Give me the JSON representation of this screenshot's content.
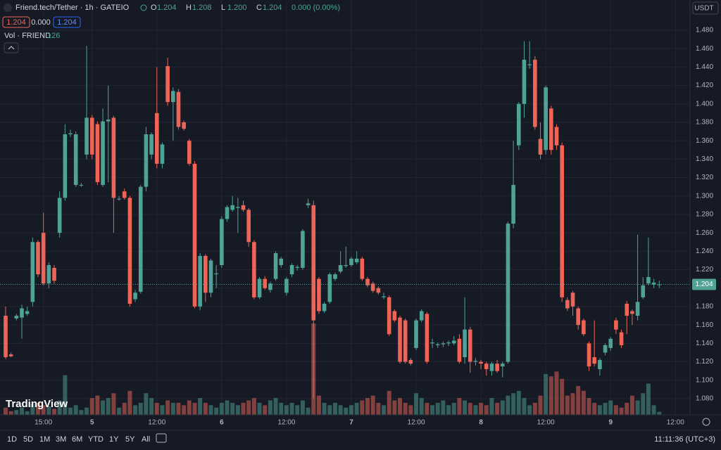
{
  "header": {
    "symbol": "Friend.tech/Tether · 1h · GATEIO",
    "ohlc": [
      {
        "label": "O",
        "value": "1.204"
      },
      {
        "label": "H",
        "value": "1.208"
      },
      {
        "label": "L",
        "value": "1.200"
      },
      {
        "label": "C",
        "value": "1.204"
      }
    ],
    "change": "0.000 (0.00%)",
    "bid": "1.204",
    "spread": "0.000",
    "ask": "1.204",
    "vol_label": "Vol · FRIEND",
    "currency": "USDT"
  },
  "toolbar": {
    "ranges": [
      "1D",
      "5D",
      "1M",
      "3M",
      "6M",
      "YTD",
      "1Y",
      "5Y",
      "All"
    ],
    "clock": "11:11:36 (UTC+3)",
    "brand": "TradingView"
  },
  "chart_data": {
    "type": "candlestick",
    "up_color": "#4fa396",
    "down_color": "#ee6557",
    "grid": true,
    "xlim": [
      -1.04,
      126.7
    ],
    "ylim": [
      1.0624,
      1.5128
    ],
    "xticks": [
      {
        "value": 7,
        "label": "15:00"
      },
      {
        "value": 16,
        "label": "5"
      },
      {
        "value": 28,
        "label": "12:00"
      },
      {
        "value": 40,
        "label": "6"
      },
      {
        "value": 52,
        "label": "12:00"
      },
      {
        "value": 64,
        "label": "7"
      },
      {
        "value": 76,
        "label": "12:00"
      },
      {
        "value": 88,
        "label": "8"
      },
      {
        "value": 100,
        "label": "12:00"
      },
      {
        "value": 112,
        "label": "9"
      },
      {
        "value": 124,
        "label": "12:00"
      }
    ],
    "yticks": [
      {
        "value": 1.08,
        "label": "1.080"
      },
      {
        "value": 1.1,
        "label": "1.100"
      },
      {
        "value": 1.12,
        "label": "1.120"
      },
      {
        "value": 1.14,
        "label": "1.140"
      },
      {
        "value": 1.16,
        "label": "1.160"
      },
      {
        "value": 1.18,
        "label": "1.180"
      },
      {
        "value": 1.2,
        "label": "1.200"
      },
      {
        "value": 1.22,
        "label": "1.220"
      },
      {
        "value": 1.24,
        "label": "1.240"
      },
      {
        "value": 1.26,
        "label": "1.260"
      },
      {
        "value": 1.28,
        "label": "1.280"
      },
      {
        "value": 1.3,
        "label": "1.300"
      },
      {
        "value": 1.32,
        "label": "1.320"
      },
      {
        "value": 1.34,
        "label": "1.340"
      },
      {
        "value": 1.36,
        "label": "1.360"
      },
      {
        "value": 1.38,
        "label": "1.380"
      },
      {
        "value": 1.4,
        "label": "1.400"
      },
      {
        "value": 1.42,
        "label": "1.420"
      },
      {
        "value": 1.44,
        "label": "1.440"
      },
      {
        "value": 1.46,
        "label": "1.460"
      },
      {
        "value": 1.48,
        "label": "1.480"
      }
    ],
    "candles": [
      [
        1.17,
        1.18,
        1.123,
        1.125
      ],
      [
        1.128,
        1.13,
        1.125,
        1.126
      ],
      [
        1.167,
        1.172,
        1.165,
        1.17
      ],
      [
        1.168,
        1.182,
        1.145,
        1.178
      ],
      [
        1.172,
        1.18,
        1.17,
        1.175
      ],
      [
        1.185,
        1.255,
        1.18,
        1.25
      ],
      [
        1.25,
        1.252,
        1.212,
        1.215
      ],
      [
        1.26,
        1.282,
        1.203,
        1.205
      ],
      [
        1.205,
        1.228,
        1.2,
        1.225
      ],
      [
        1.222,
        1.225,
        1.205,
        1.208
      ],
      [
        1.26,
        1.305,
        1.255,
        1.298
      ],
      [
        1.298,
        1.378,
        1.295,
        1.367
      ],
      [
        1.367,
        1.372,
        1.364,
        1.368
      ],
      [
        1.312,
        1.37,
        1.31,
        1.367
      ],
      [
        1.312,
        1.314,
        1.31,
        1.312
      ],
      [
        1.345,
        1.463,
        1.34,
        1.385
      ],
      [
        1.385,
        1.388,
        1.34,
        1.345
      ],
      [
        1.378,
        1.381,
        1.312,
        1.315
      ],
      [
        1.312,
        1.395,
        1.31,
        1.381
      ],
      [
        1.381,
        1.42,
        1.315,
        1.383
      ],
      [
        1.385,
        1.387,
        1.26,
        1.298
      ],
      [
        1.297,
        1.3,
        1.295,
        1.297
      ],
      [
        1.305,
        1.308,
        1.296,
        1.298
      ],
      [
        1.298,
        1.3,
        1.18,
        1.183
      ],
      [
        1.188,
        1.198,
        1.185,
        1.195
      ],
      [
        1.196,
        1.312,
        1.194,
        1.31
      ],
      [
        1.31,
        1.375,
        1.305,
        1.367
      ],
      [
        1.345,
        1.369,
        1.34,
        1.367
      ],
      [
        1.39,
        1.44,
        1.33,
        1.335
      ],
      [
        1.335,
        1.358,
        1.33,
        1.356
      ],
      [
        1.441,
        1.45,
        1.398,
        1.402
      ],
      [
        1.402,
        1.418,
        1.36,
        1.414
      ],
      [
        1.413,
        1.416,
        1.372,
        1.375
      ],
      [
        1.38,
        1.382,
        1.371,
        1.373
      ],
      [
        1.36,
        1.362,
        1.333,
        1.335
      ],
      [
        1.335,
        1.338,
        1.178,
        1.18
      ],
      [
        1.18,
        1.238,
        1.176,
        1.235
      ],
      [
        1.235,
        1.237,
        1.185,
        1.195
      ],
      [
        1.195,
        1.232,
        1.19,
        1.23
      ],
      [
        1.215,
        1.225,
        1.2,
        1.216
      ],
      [
        1.225,
        1.278,
        1.222,
        1.275
      ],
      [
        1.275,
        1.29,
        1.272,
        1.288
      ],
      [
        1.285,
        1.3,
        1.283,
        1.29
      ],
      [
        1.287,
        1.298,
        1.26,
        1.288
      ],
      [
        1.29,
        1.295,
        1.283,
        1.285
      ],
      [
        1.285,
        1.287,
        1.245,
        1.25
      ],
      [
        1.25,
        1.252,
        1.188,
        1.19
      ],
      [
        1.19,
        1.212,
        1.188,
        1.21
      ],
      [
        1.21,
        1.213,
        1.198,
        1.2
      ],
      [
        1.198,
        1.207,
        1.195,
        1.205
      ],
      [
        1.21,
        1.24,
        1.208,
        1.238
      ],
      [
        1.225,
        1.234,
        1.222,
        1.232
      ],
      [
        1.195,
        1.212,
        1.192,
        1.21
      ],
      [
        1.215,
        1.227,
        1.212,
        1.225
      ],
      [
        1.222,
        1.225,
        1.219,
        1.223
      ],
      [
        1.222,
        1.264,
        1.22,
        1.262
      ],
      [
        1.29,
        1.297,
        1.287,
        1.292
      ],
      [
        1.29,
        1.295,
        1.08,
        1.165
      ],
      [
        1.21,
        1.212,
        1.172,
        1.175
      ],
      [
        1.175,
        1.185,
        1.173,
        1.183
      ],
      [
        1.185,
        1.217,
        1.183,
        1.215
      ],
      [
        1.21,
        1.217,
        1.208,
        1.215
      ],
      [
        1.218,
        1.24,
        1.216,
        1.225
      ],
      [
        1.224,
        1.245,
        1.222,
        1.225
      ],
      [
        1.225,
        1.234,
        1.223,
        1.232
      ],
      [
        1.228,
        1.24,
        1.226,
        1.232
      ],
      [
        1.232,
        1.234,
        1.208,
        1.21
      ],
      [
        1.21,
        1.212,
        1.201,
        1.203
      ],
      [
        1.205,
        1.207,
        1.195,
        1.197
      ],
      [
        1.2,
        1.202,
        1.193,
        1.195
      ],
      [
        1.19,
        1.195,
        1.188,
        1.191
      ],
      [
        1.19,
        1.192,
        1.148,
        1.15
      ],
      [
        1.175,
        1.177,
        1.163,
        1.165
      ],
      [
        1.168,
        1.17,
        1.118,
        1.12
      ],
      [
        1.165,
        1.167,
        1.118,
        1.12
      ],
      [
        1.122,
        1.124,
        1.116,
        1.118
      ],
      [
        1.135,
        1.167,
        1.133,
        1.165
      ],
      [
        1.165,
        1.177,
        1.163,
        1.175
      ],
      [
        1.172,
        1.174,
        1.118,
        1.12
      ],
      [
        1.14,
        1.145,
        1.135,
        1.141
      ],
      [
        1.138,
        1.141,
        1.135,
        1.139
      ],
      [
        1.139,
        1.142,
        1.136,
        1.14
      ],
      [
        1.14,
        1.143,
        1.137,
        1.141
      ],
      [
        1.14,
        1.148,
        1.138,
        1.143
      ],
      [
        1.145,
        1.15,
        1.118,
        1.12
      ],
      [
        1.125,
        1.19,
        1.118,
        1.155
      ],
      [
        1.155,
        1.158,
        1.108,
        1.12
      ],
      [
        1.12,
        1.124,
        1.116,
        1.121
      ],
      [
        1.12,
        1.122,
        1.112,
        1.118
      ],
      [
        1.118,
        1.12,
        1.105,
        1.112
      ],
      [
        1.11,
        1.12,
        1.105,
        1.118
      ],
      [
        1.118,
        1.122,
        1.108,
        1.11
      ],
      [
        1.115,
        1.12,
        1.103,
        1.118
      ],
      [
        1.12,
        1.272,
        1.118,
        1.27
      ],
      [
        1.27,
        1.36,
        1.265,
        1.312
      ],
      [
        1.355,
        1.402,
        1.35,
        1.4
      ],
      [
        1.4,
        1.468,
        1.385,
        1.448
      ],
      [
        1.442,
        1.468,
        1.438,
        1.443
      ],
      [
        1.448,
        1.452,
        1.372,
        1.375
      ],
      [
        1.362,
        1.38,
        1.34,
        1.345
      ],
      [
        1.35,
        1.42,
        1.345,
        1.418
      ],
      [
        1.395,
        1.398,
        1.345,
        1.35
      ],
      [
        1.375,
        1.378,
        1.35,
        1.355
      ],
      [
        1.355,
        1.358,
        1.185,
        1.19
      ],
      [
        1.187,
        1.19,
        1.175,
        1.178
      ],
      [
        1.195,
        1.197,
        1.17,
        1.18
      ],
      [
        1.178,
        1.18,
        1.155,
        1.16
      ],
      [
        1.165,
        1.167,
        1.148,
        1.15
      ],
      [
        1.14,
        1.142,
        1.11,
        1.115
      ],
      [
        1.125,
        1.165,
        1.115,
        1.118
      ],
      [
        1.112,
        1.124,
        1.105,
        1.122
      ],
      [
        1.13,
        1.14,
        1.127,
        1.138
      ],
      [
        1.135,
        1.147,
        1.132,
        1.145
      ],
      [
        1.165,
        1.168,
        1.15,
        1.155
      ],
      [
        1.152,
        1.155,
        1.135,
        1.138
      ],
      [
        1.183,
        1.186,
        1.15,
        1.17
      ],
      [
        1.175,
        1.177,
        1.16,
        1.172
      ],
      [
        1.17,
        1.258,
        1.165,
        1.185
      ],
      [
        1.19,
        1.212,
        1.188,
        1.203
      ],
      [
        1.205,
        1.255,
        1.203,
        1.212
      ],
      [
        1.204,
        1.21,
        1.2,
        1.206
      ],
      [
        1.204,
        1.208,
        1.2,
        1.204
      ]
    ],
    "volume": [
      300,
      150,
      200,
      300,
      150,
      450,
      500,
      400,
      350,
      250,
      600,
      1650,
      300,
      400,
      200,
      300,
      700,
      800,
      600,
      700,
      900,
      300,
      500,
      1000,
      400,
      500,
      900,
      700,
      500,
      400,
      600,
      500,
      500,
      400,
      600,
      500,
      700,
      500,
      400,
      300,
      500,
      600,
      500,
      400,
      500,
      600,
      700,
      500,
      400,
      600,
      700,
      500,
      400,
      500,
      400,
      600,
      300,
      3800,
      800,
      500,
      400,
      500,
      400,
      300,
      400,
      500,
      600,
      700,
      800,
      500,
      400,
      1000,
      600,
      700,
      500,
      400,
      900,
      700,
      500,
      400,
      500,
      600,
      400,
      500,
      700,
      600,
      500,
      400,
      500,
      400,
      700,
      500,
      600,
      800,
      900,
      1000,
      700,
      400,
      500,
      800,
      1700,
      1600,
      1800,
      1500,
      800,
      900,
      1200,
      1000,
      700,
      500,
      400,
      500,
      600,
      400,
      300,
      500,
      800,
      600,
      900,
      1300,
      400,
      126
    ]
  }
}
